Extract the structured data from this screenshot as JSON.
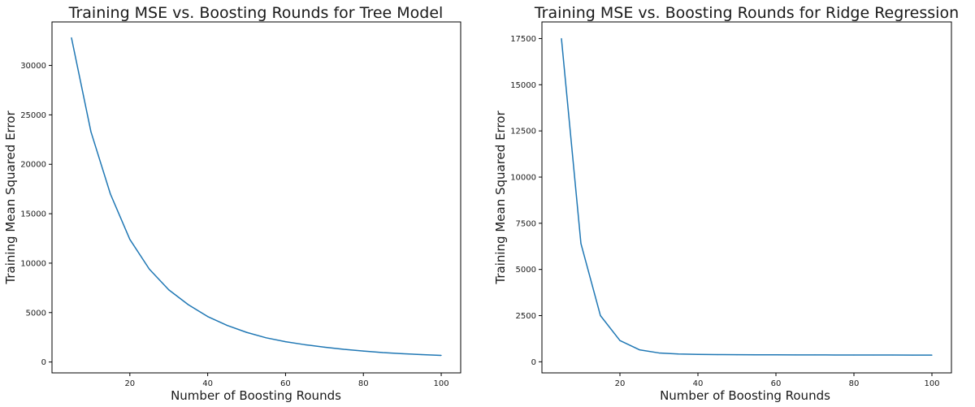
{
  "chart_data": [
    {
      "type": "line",
      "title": "Training MSE vs. Boosting Rounds for Tree Model",
      "xlabel": "Number of Boosting Rounds",
      "ylabel": "Training Mean Squared Error",
      "xlim": [
        0,
        105
      ],
      "ylim": [
        -1100,
        34400
      ],
      "xticks": [
        20,
        40,
        60,
        80,
        100
      ],
      "yticks": [
        0,
        5000,
        10000,
        15000,
        20000,
        25000,
        30000
      ],
      "grid": false,
      "series": [
        {
          "name": "Training MSE",
          "color": "#1f77b4",
          "x": [
            5,
            10,
            15,
            20,
            25,
            30,
            35,
            40,
            45,
            50,
            55,
            60,
            65,
            70,
            75,
            80,
            85,
            90,
            95,
            100
          ],
          "y": [
            32800,
            23300,
            17000,
            12400,
            9400,
            7300,
            5800,
            4600,
            3700,
            3000,
            2450,
            2050,
            1750,
            1500,
            1280,
            1110,
            950,
            840,
            750,
            670
          ]
        }
      ]
    },
    {
      "type": "line",
      "title": "Training MSE vs. Boosting Rounds for Ridge Regression",
      "xlabel": "Number of Boosting Rounds",
      "ylabel": "Training Mean Squared Error",
      "xlim": [
        0,
        105
      ],
      "ylim": [
        -600,
        18400
      ],
      "xticks": [
        20,
        40,
        60,
        80,
        100
      ],
      "yticks": [
        0,
        2500,
        5000,
        7500,
        10000,
        12500,
        15000,
        17500
      ],
      "grid": false,
      "series": [
        {
          "name": "Training MSE",
          "color": "#1f77b4",
          "x": [
            5,
            10,
            15,
            20,
            25,
            30,
            35,
            40,
            45,
            50,
            55,
            60,
            65,
            70,
            75,
            80,
            85,
            90,
            95,
            100
          ],
          "y": [
            17500,
            6400,
            2500,
            1150,
            650,
            480,
            420,
            400,
            390,
            385,
            380,
            378,
            375,
            372,
            370,
            368,
            366,
            365,
            364,
            363
          ]
        }
      ]
    }
  ]
}
